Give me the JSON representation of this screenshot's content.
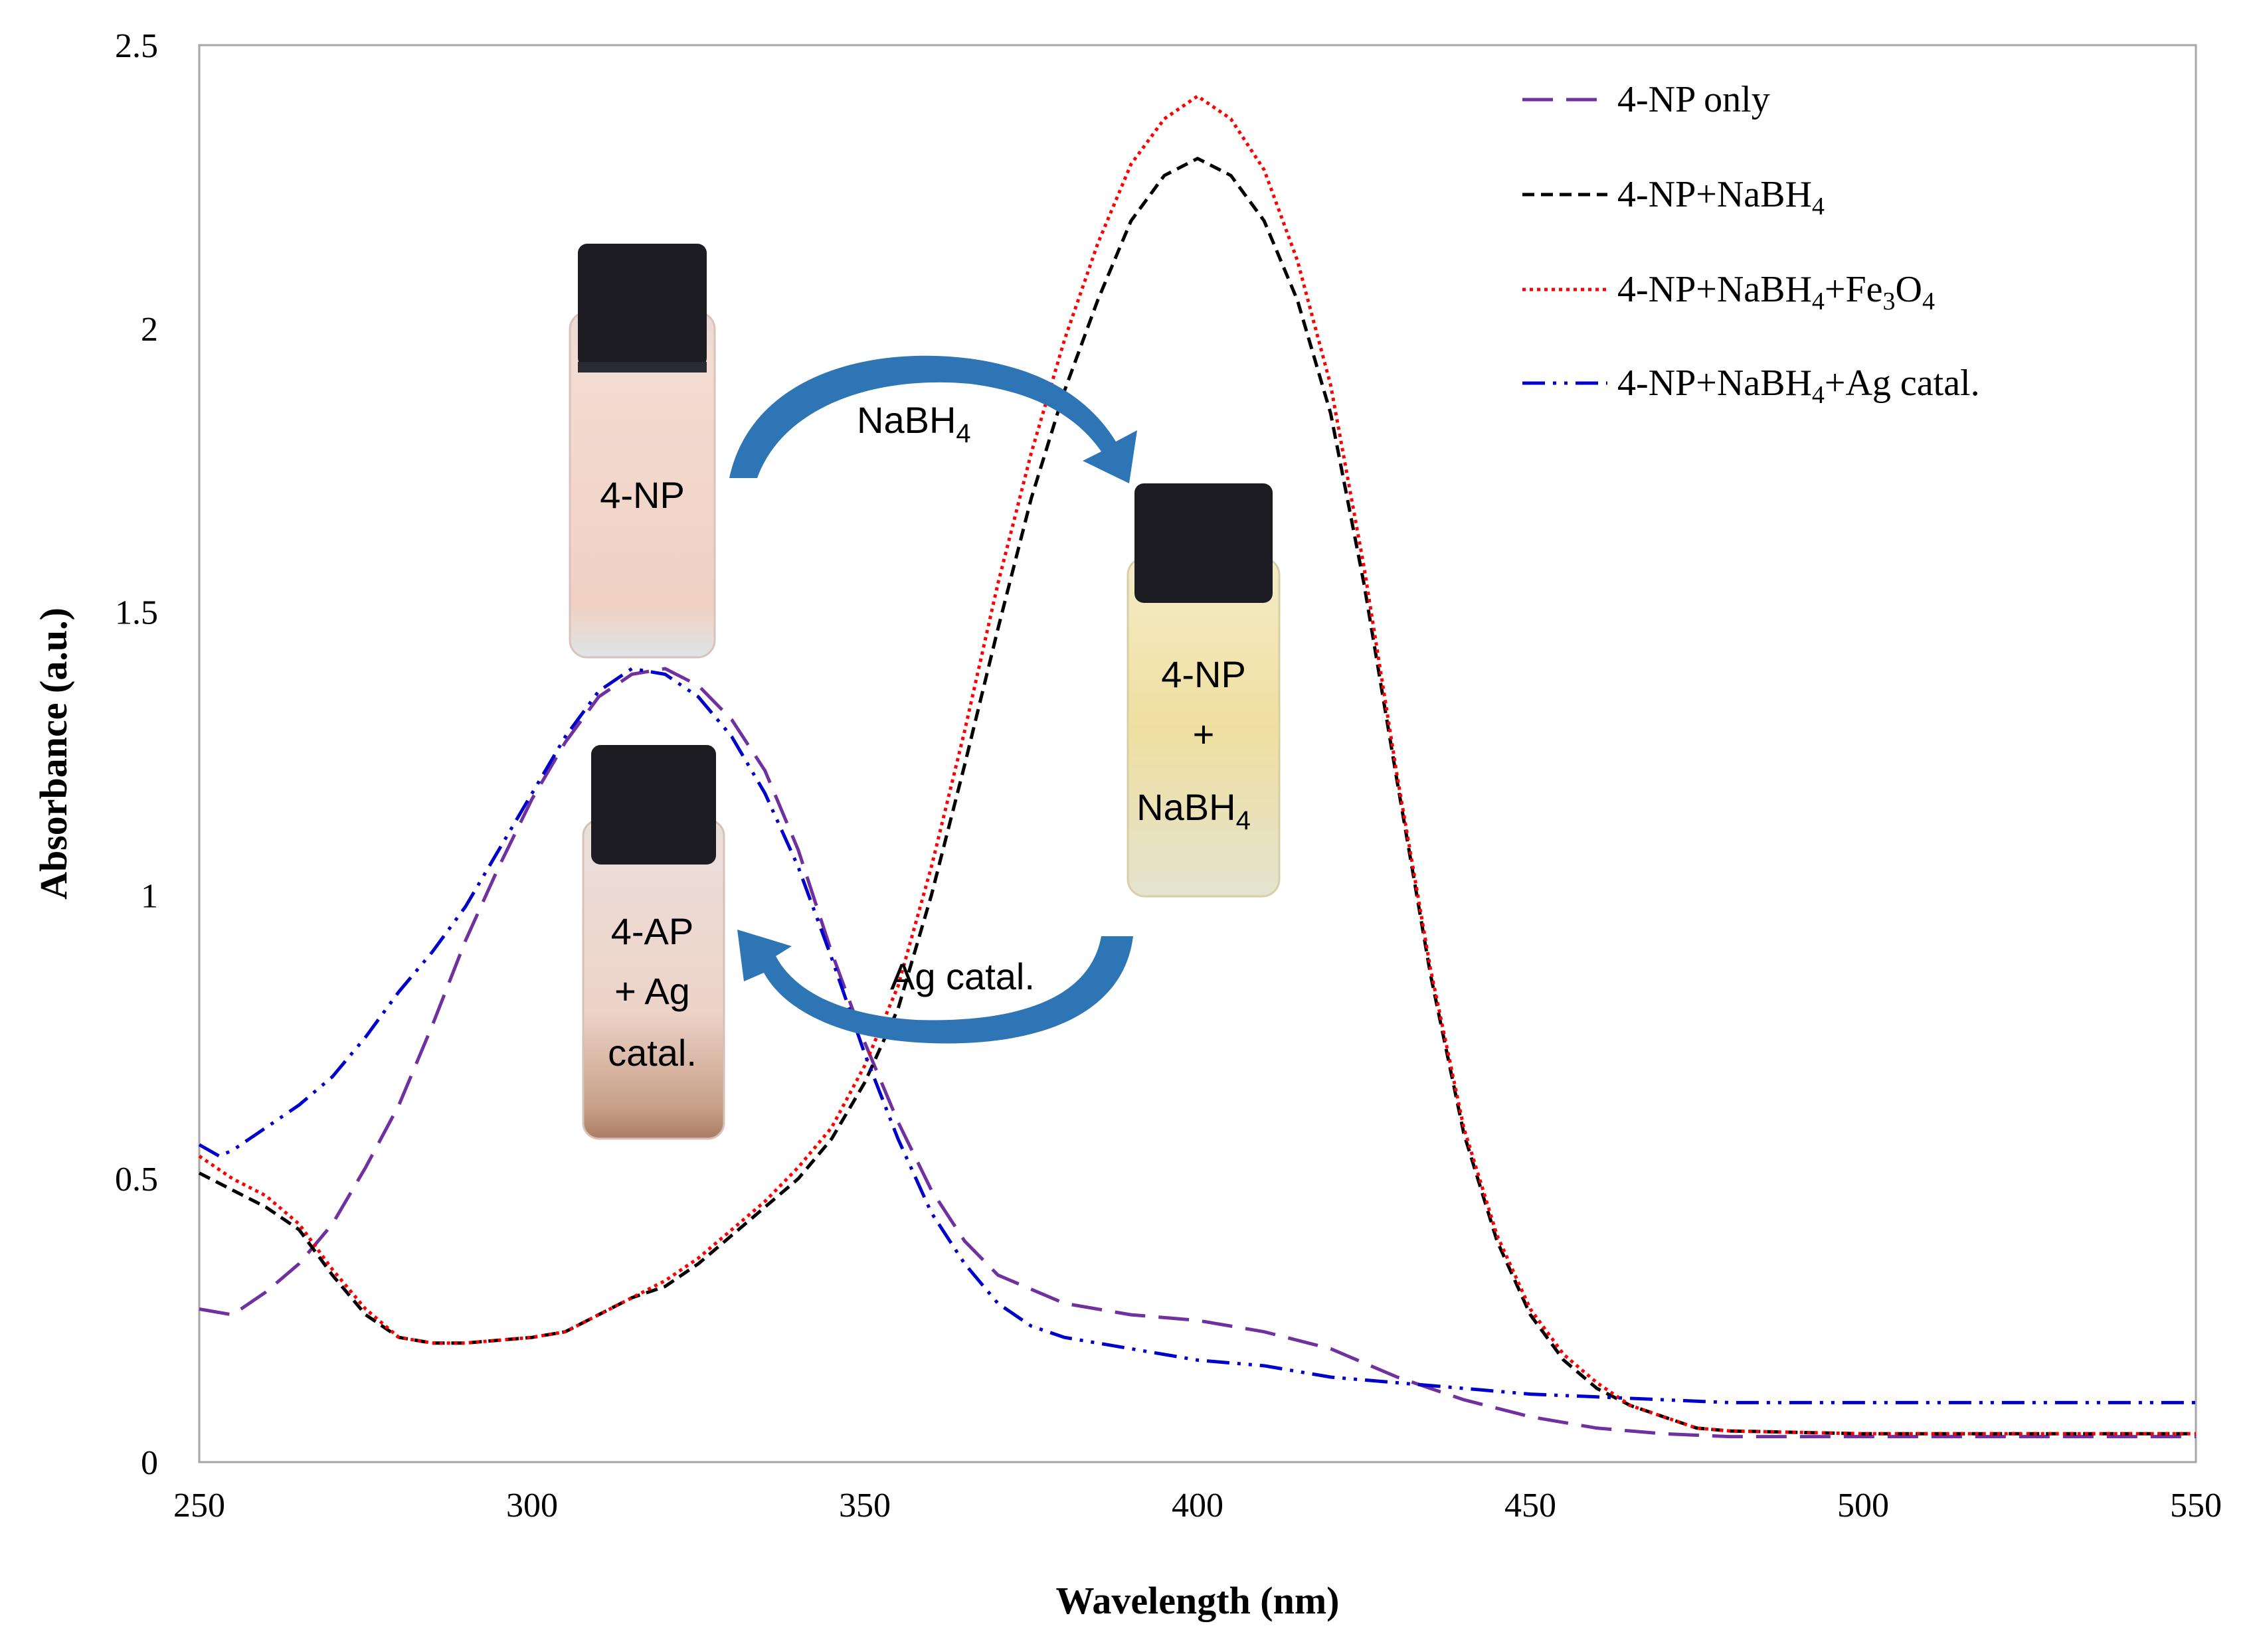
{
  "chart_data": {
    "type": "line",
    "title": "",
    "xlabel": "Wavelength (nm)",
    "ylabel": "Absorbance (a.u.)",
    "xlim": [
      250,
      550
    ],
    "ylim": [
      0,
      2.5
    ],
    "xticks": [
      250,
      300,
      350,
      400,
      450,
      500,
      550
    ],
    "yticks": [
      0,
      0.5,
      1,
      1.5,
      2,
      2.5
    ],
    "ytick_labels": [
      "0",
      "0.5",
      "1",
      "1.5",
      "2",
      "2.5"
    ],
    "grid": false,
    "legend_position": "top-right",
    "series": [
      {
        "name": "4-NP only",
        "legend_label": "4-NP only",
        "color": "#7030a0",
        "dash": "long-dash",
        "points": [
          [
            250,
            0.27
          ],
          [
            255,
            0.26
          ],
          [
            260,
            0.3
          ],
          [
            265,
            0.35
          ],
          [
            270,
            0.42
          ],
          [
            275,
            0.52
          ],
          [
            280,
            0.63
          ],
          [
            285,
            0.77
          ],
          [
            290,
            0.92
          ],
          [
            295,
            1.05
          ],
          [
            300,
            1.17
          ],
          [
            305,
            1.27
          ],
          [
            310,
            1.35
          ],
          [
            315,
            1.39
          ],
          [
            320,
            1.4
          ],
          [
            325,
            1.37
          ],
          [
            330,
            1.31
          ],
          [
            335,
            1.22
          ],
          [
            340,
            1.08
          ],
          [
            345,
            0.9
          ],
          [
            350,
            0.74
          ],
          [
            355,
            0.6
          ],
          [
            360,
            0.48
          ],
          [
            365,
            0.39
          ],
          [
            370,
            0.33
          ],
          [
            380,
            0.28
          ],
          [
            390,
            0.26
          ],
          [
            400,
            0.25
          ],
          [
            410,
            0.23
          ],
          [
            420,
            0.2
          ],
          [
            430,
            0.15
          ],
          [
            440,
            0.11
          ],
          [
            450,
            0.08
          ],
          [
            460,
            0.06
          ],
          [
            470,
            0.05
          ],
          [
            480,
            0.045
          ],
          [
            500,
            0.045
          ],
          [
            550,
            0.045
          ]
        ]
      },
      {
        "name": "4-NP+NaBH4",
        "legend_label": "4-NP+NaBH",
        "legend_subscripts": [
          "4"
        ],
        "color": "#000000",
        "dash": "short-dash",
        "points": [
          [
            250,
            0.51
          ],
          [
            255,
            0.48
          ],
          [
            260,
            0.45
          ],
          [
            265,
            0.41
          ],
          [
            270,
            0.33
          ],
          [
            275,
            0.26
          ],
          [
            280,
            0.22
          ],
          [
            285,
            0.21
          ],
          [
            290,
            0.21
          ],
          [
            300,
            0.22
          ],
          [
            305,
            0.23
          ],
          [
            310,
            0.26
          ],
          [
            315,
            0.29
          ],
          [
            320,
            0.31
          ],
          [
            325,
            0.35
          ],
          [
            330,
            0.4
          ],
          [
            335,
            0.45
          ],
          [
            340,
            0.5
          ],
          [
            345,
            0.57
          ],
          [
            350,
            0.67
          ],
          [
            355,
            0.8
          ],
          [
            360,
            1.0
          ],
          [
            365,
            1.23
          ],
          [
            370,
            1.47
          ],
          [
            375,
            1.7
          ],
          [
            380,
            1.89
          ],
          [
            385,
            2.05
          ],
          [
            390,
            2.19
          ],
          [
            395,
            2.27
          ],
          [
            400,
            2.3
          ],
          [
            405,
            2.27
          ],
          [
            410,
            2.19
          ],
          [
            415,
            2.05
          ],
          [
            420,
            1.85
          ],
          [
            425,
            1.55
          ],
          [
            430,
            1.2
          ],
          [
            435,
            0.86
          ],
          [
            440,
            0.58
          ],
          [
            445,
            0.39
          ],
          [
            450,
            0.26
          ],
          [
            455,
            0.18
          ],
          [
            460,
            0.13
          ],
          [
            465,
            0.1
          ],
          [
            470,
            0.08
          ],
          [
            475,
            0.06
          ],
          [
            480,
            0.055
          ],
          [
            500,
            0.05
          ],
          [
            550,
            0.05
          ]
        ]
      },
      {
        "name": "4-NP+NaBH4+Fe3O4",
        "legend_label": "4-NP+NaBH",
        "legend_subscripts": [
          "4"
        ],
        "legend_middle": "+Fe",
        "legend_sub2": "3",
        "legend_mid2": "O",
        "legend_sub3": "4",
        "color": "#ff0000",
        "dash": "dotted",
        "points": [
          [
            250,
            0.54
          ],
          [
            255,
            0.5
          ],
          [
            260,
            0.47
          ],
          [
            265,
            0.42
          ],
          [
            270,
            0.34
          ],
          [
            275,
            0.27
          ],
          [
            280,
            0.22
          ],
          [
            285,
            0.21
          ],
          [
            290,
            0.21
          ],
          [
            300,
            0.22
          ],
          [
            305,
            0.23
          ],
          [
            310,
            0.26
          ],
          [
            315,
            0.29
          ],
          [
            320,
            0.32
          ],
          [
            325,
            0.36
          ],
          [
            330,
            0.41
          ],
          [
            335,
            0.46
          ],
          [
            340,
            0.52
          ],
          [
            345,
            0.59
          ],
          [
            350,
            0.7
          ],
          [
            355,
            0.84
          ],
          [
            360,
            1.05
          ],
          [
            365,
            1.29
          ],
          [
            370,
            1.55
          ],
          [
            375,
            1.78
          ],
          [
            380,
            1.98
          ],
          [
            385,
            2.15
          ],
          [
            390,
            2.29
          ],
          [
            395,
            2.37
          ],
          [
            400,
            2.41
          ],
          [
            405,
            2.37
          ],
          [
            410,
            2.28
          ],
          [
            415,
            2.12
          ],
          [
            420,
            1.9
          ],
          [
            425,
            1.58
          ],
          [
            430,
            1.21
          ],
          [
            435,
            0.87
          ],
          [
            440,
            0.59
          ],
          [
            445,
            0.4
          ],
          [
            450,
            0.27
          ],
          [
            455,
            0.19
          ],
          [
            460,
            0.14
          ],
          [
            465,
            0.1
          ],
          [
            470,
            0.08
          ],
          [
            475,
            0.06
          ],
          [
            480,
            0.055
          ],
          [
            500,
            0.05
          ],
          [
            550,
            0.05
          ]
        ]
      },
      {
        "name": "4-NP+NaBH4+Ag catal.",
        "legend_label": "4-NP+NaBH",
        "legend_subscripts": [
          "4"
        ],
        "legend_suffix": "+Ag catal.",
        "color": "#0000cc",
        "dash": "dash-dot-dot",
        "points": [
          [
            250,
            0.56
          ],
          [
            253,
            0.54
          ],
          [
            255,
            0.55
          ],
          [
            260,
            0.59
          ],
          [
            265,
            0.63
          ],
          [
            270,
            0.68
          ],
          [
            275,
            0.75
          ],
          [
            280,
            0.83
          ],
          [
            285,
            0.9
          ],
          [
            290,
            0.98
          ],
          [
            295,
            1.08
          ],
          [
            300,
            1.18
          ],
          [
            305,
            1.28
          ],
          [
            310,
            1.36
          ],
          [
            315,
            1.4
          ],
          [
            320,
            1.39
          ],
          [
            325,
            1.35
          ],
          [
            330,
            1.28
          ],
          [
            335,
            1.18
          ],
          [
            340,
            1.05
          ],
          [
            345,
            0.89
          ],
          [
            350,
            0.72
          ],
          [
            355,
            0.57
          ],
          [
            360,
            0.44
          ],
          [
            365,
            0.35
          ],
          [
            370,
            0.28
          ],
          [
            375,
            0.24
          ],
          [
            380,
            0.22
          ],
          [
            390,
            0.2
          ],
          [
            400,
            0.18
          ],
          [
            410,
            0.17
          ],
          [
            420,
            0.15
          ],
          [
            430,
            0.14
          ],
          [
            440,
            0.13
          ],
          [
            450,
            0.12
          ],
          [
            460,
            0.115
          ],
          [
            470,
            0.11
          ],
          [
            480,
            0.105
          ],
          [
            500,
            0.105
          ],
          [
            550,
            0.105
          ]
        ]
      }
    ],
    "annotations": {
      "vial_4np": "4-NP",
      "vial_nabh4_line1": "4-NP",
      "vial_nabh4_line2": "+",
      "vial_nabh4_line3": "NaBH",
      "vial_nabh4_line3_sub": "4",
      "vial_4ap_line1": "4-AP",
      "vial_4ap_line2": "+ Ag",
      "vial_4ap_line3": "catal.",
      "arrow_top_label": "NaBH",
      "arrow_top_label_sub": "4",
      "arrow_bottom_label": "Ag catal."
    }
  },
  "colors": {
    "arrow": "#2e75b6",
    "cap": "#1c1c22",
    "vial_4np": "#f1d8cf",
    "vial_nabh4": "#f0e2a8",
    "vial_4ap": "#e9d2c7"
  }
}
